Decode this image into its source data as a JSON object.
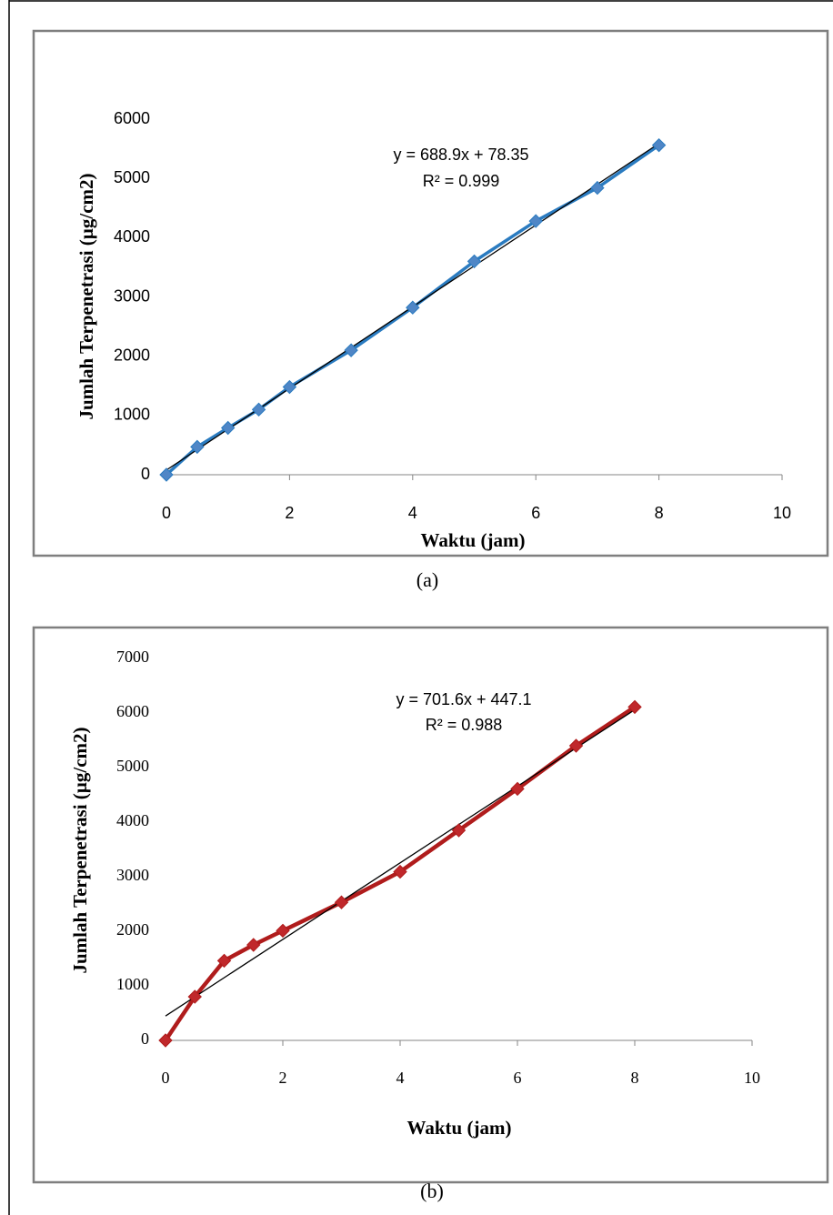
{
  "chart_data": [
    {
      "type": "line",
      "x": [
        0,
        0.5,
        1,
        1.5,
        2,
        3,
        4,
        5,
        6,
        7,
        8
      ],
      "series": [
        {
          "color": "#2a7bc0",
          "marker_color": "#4f86c6",
          "values": [
            0,
            470,
            790,
            1100,
            1480,
            2100,
            2820,
            3600,
            4280,
            4840,
            5560
          ]
        }
      ],
      "trendline": {
        "slope": 688.9,
        "intercept": 78.35,
        "color": "#000000",
        "equation": "y = 688.9x + 78.35",
        "r_squared_label": "R² = 0.999"
      },
      "x_label": "Waktu (jam)",
      "y_label": "Jumlah Terpenetrasi (µg/cm2)",
      "xlim": [
        0,
        10
      ],
      "xticks": [
        0,
        2,
        4,
        6,
        8,
        10
      ],
      "ylim": [
        0,
        6000
      ],
      "yticks": [
        0,
        1000,
        2000,
        3000,
        4000,
        5000,
        6000
      ],
      "grid": false,
      "caption": "(a)"
    },
    {
      "type": "line",
      "x": [
        0,
        0.5,
        1,
        1.5,
        2,
        3,
        4,
        5,
        6,
        7,
        8
      ],
      "series": [
        {
          "color": "#b01c1c",
          "marker_color": "#c0282b",
          "values": [
            0,
            800,
            1460,
            1750,
            2010,
            2530,
            3090,
            3850,
            4610,
            5400,
            6110
          ]
        }
      ],
      "trendline": {
        "slope": 701.6,
        "intercept": 447.1,
        "color": "#000000",
        "equation": "y = 701.6x + 447.1",
        "r_squared_label": "R² = 0.988"
      },
      "x_label": "Waktu (jam)",
      "y_label": "Jumlah Terpenetrasi (µg/cm2)",
      "xlim": [
        0,
        10
      ],
      "xticks": [
        0,
        2,
        4,
        6,
        8,
        10
      ],
      "ylim": [
        0,
        7000
      ],
      "yticks": [
        0,
        1000,
        2000,
        3000,
        4000,
        5000,
        6000,
        7000
      ],
      "grid": false,
      "caption": "(b)"
    }
  ]
}
